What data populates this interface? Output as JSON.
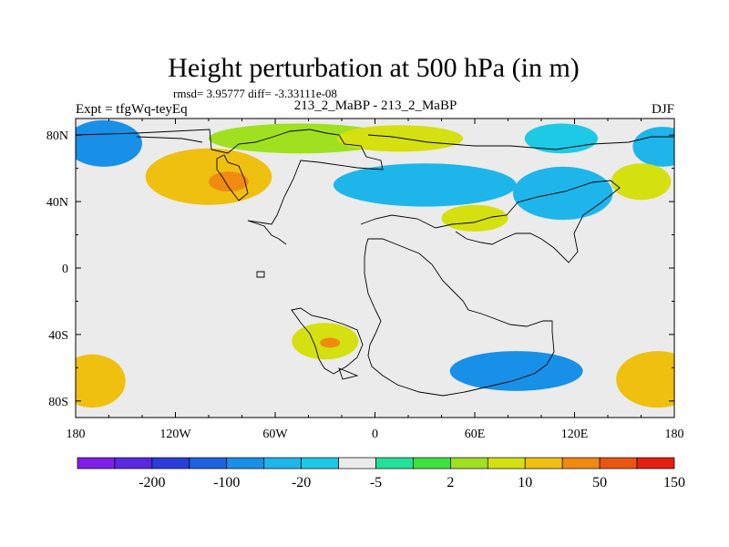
{
  "chart_data": {
    "type": "heatmap",
    "title": "Height perturbation at 500 hPa (in m)",
    "stats": "rmsd= 3.95777 diff= -3.33111e-08",
    "left_label": "Expt = tfgWq-teyEq",
    "center_label": "213_2_MaBP - 213_2_MaBP",
    "right_label": "DJF",
    "xlim": [
      -180,
      180
    ],
    "ylim": [
      -90,
      90
    ],
    "x_ticks": [
      {
        "value": -180,
        "label": "180"
      },
      {
        "value": -120,
        "label": "120W"
      },
      {
        "value": -60,
        "label": "60W"
      },
      {
        "value": 0,
        "label": "0"
      },
      {
        "value": 60,
        "label": "60E"
      },
      {
        "value": 120,
        "label": "120E"
      },
      {
        "value": 180,
        "label": "180"
      }
    ],
    "y_ticks": [
      {
        "value": 80,
        "label": "80N"
      },
      {
        "value": 40,
        "label": "40N"
      },
      {
        "value": 0,
        "label": "0"
      },
      {
        "value": -40,
        "label": "40S"
      },
      {
        "value": -80,
        "label": "80S"
      }
    ],
    "colorbar": {
      "colors": [
        "#7f1fe6",
        "#5a28e0",
        "#2c3cd9",
        "#1c63e0",
        "#1890e8",
        "#1eb6ea",
        "#1ec9e6",
        "#ebebeb",
        "#24e09a",
        "#40e040",
        "#9fe020",
        "#d4e010",
        "#f0c010",
        "#f08a10",
        "#ea5510",
        "#e42010"
      ],
      "labels": [
        {
          "boundary": 2,
          "text": "-200"
        },
        {
          "boundary": 4,
          "text": "-100"
        },
        {
          "boundary": 6,
          "text": "-20"
        },
        {
          "boundary": 8,
          "text": "-5"
        },
        {
          "boundary": 10,
          "text": "2"
        },
        {
          "boundary": 12,
          "text": "10"
        },
        {
          "boundary": 14,
          "text": "50"
        },
        {
          "boundary": 16,
          "text": "150"
        }
      ]
    },
    "features": [
      {
        "name": "n-pacific-low",
        "lon": -163,
        "lat": 75,
        "rlon": 23,
        "rlat": 14,
        "value": -22
      },
      {
        "name": "n-pacific-low-west",
        "lon": 173,
        "lat": 73,
        "rlon": 18,
        "rlat": 12,
        "value": -15
      },
      {
        "name": "na-high",
        "lon": -100,
        "lat": 55,
        "rlon": 38,
        "rlat": 17,
        "value": 35
      },
      {
        "name": "na-high-core",
        "lon": -88,
        "lat": 52,
        "rlon": 12,
        "rlat": 6,
        "value": 65
      },
      {
        "name": "arctic-green",
        "lon": -45,
        "lat": 78,
        "rlon": 55,
        "rlat": 9,
        "value": 8
      },
      {
        "name": "arctic-ridge",
        "lon": 15,
        "lat": 78,
        "rlon": 38,
        "rlat": 8,
        "value": 15
      },
      {
        "name": "atlantic-trough",
        "lon": 30,
        "lat": 50,
        "rlon": 55,
        "rlat": 13,
        "value": -15
      },
      {
        "name": "asia-trough",
        "lon": 113,
        "lat": 45,
        "rlon": 30,
        "rlat": 16,
        "value": -20
      },
      {
        "name": "asia-ne-low",
        "lon": 112,
        "lat": 78,
        "rlon": 22,
        "rlat": 9,
        "value": -8
      },
      {
        "name": "mideast-high",
        "lon": 60,
        "lat": 30,
        "rlon": 20,
        "rlat": 8,
        "value": 12
      },
      {
        "name": "w-pacific-high",
        "lon": 160,
        "lat": 52,
        "rlon": 18,
        "rlat": 11,
        "value": 12
      },
      {
        "name": "sp-high-east",
        "lon": 170,
        "lat": -67,
        "rlon": 25,
        "rlat": 17,
        "value": 40
      },
      {
        "name": "sp-high-west",
        "lon": -170,
        "lat": -68,
        "rlon": 20,
        "rlat": 16,
        "value": 40
      },
      {
        "name": "sp-ring-1",
        "lon": -122,
        "lat": -48,
        "rlon": 28,
        "rlat": 10,
        "value": -5
      },
      {
        "name": "sp-ring-2",
        "lon": -80,
        "lat": -64,
        "rlon": 35,
        "rlat": 9,
        "value": -5
      },
      {
        "name": "s-atlantic-high",
        "lon": -30,
        "lat": -44,
        "rlon": 20,
        "rlat": 11,
        "value": 15
      },
      {
        "name": "s-atlantic-core",
        "lon": -27,
        "lat": -45,
        "rlon": 6,
        "rlat": 3,
        "value": 60
      },
      {
        "name": "s-indian-low",
        "lon": 85,
        "lat": -62,
        "rlon": 40,
        "rlat": 12,
        "value": -25
      },
      {
        "name": "s-indian-low-edge",
        "lon": 30,
        "lat": -45,
        "rlon": 20,
        "rlat": 9,
        "value": -5
      },
      {
        "name": "sh-mid-low",
        "lon": -140,
        "lat": -10,
        "rlon": 10,
        "rlat": 5,
        "value": -3
      }
    ]
  }
}
